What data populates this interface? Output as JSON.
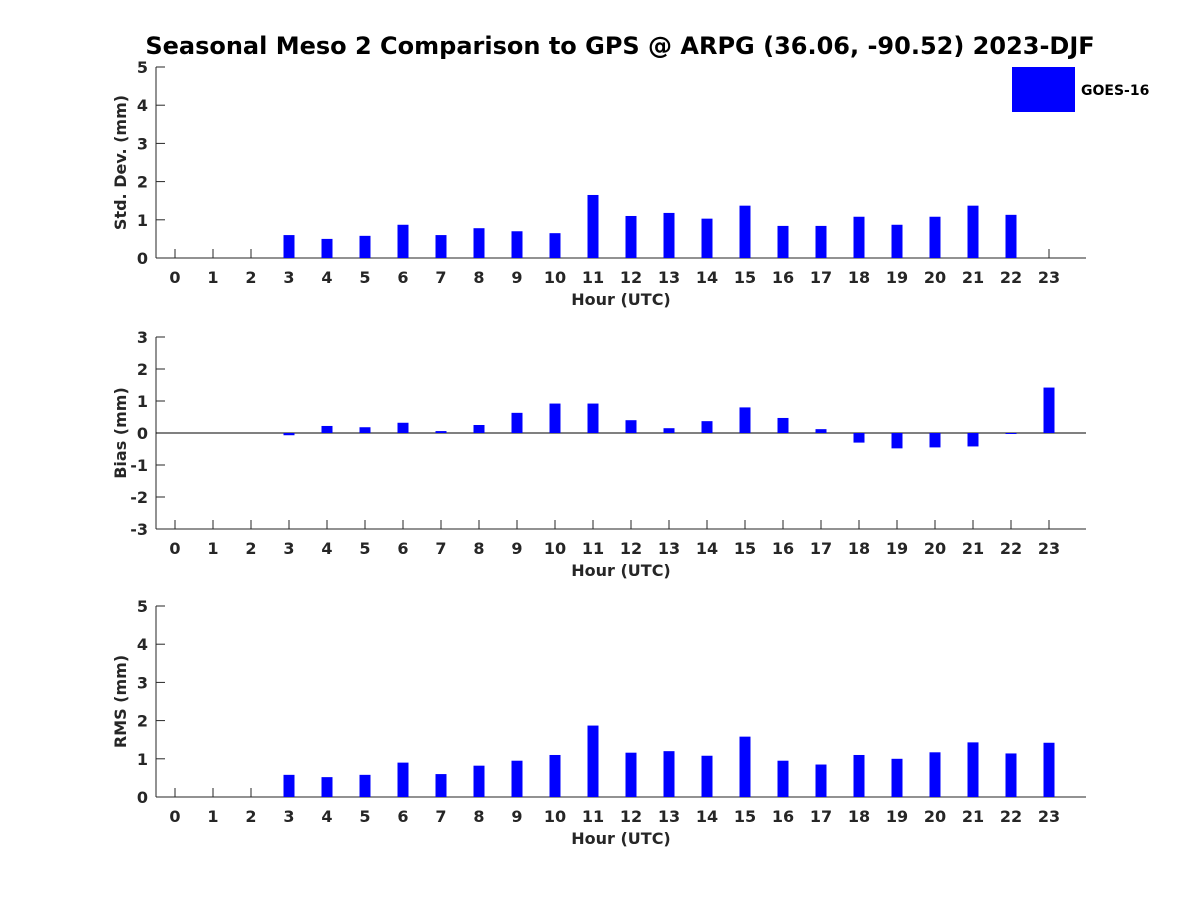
{
  "title": "Seasonal Meso 2 Comparison to GPS @ ARPG (36.06, -90.52) 2023-DJF",
  "legend": {
    "label": "GOES-16",
    "color": "#0000ff"
  },
  "bar_color": "#0000ff",
  "chart_data": [
    {
      "type": "bar",
      "xlabel": "Hour (UTC)",
      "ylabel": "Std. Dev. (mm)",
      "categories": [
        "0",
        "1",
        "2",
        "3",
        "4",
        "5",
        "6",
        "7",
        "8",
        "9",
        "10",
        "11",
        "12",
        "13",
        "14",
        "15",
        "16",
        "17",
        "18",
        "19",
        "20",
        "21",
        "22",
        "23"
      ],
      "yticks": [
        0,
        1,
        2,
        3,
        4,
        5
      ],
      "ylim": [
        0,
        5
      ],
      "grid": false,
      "legend_position": "top-right",
      "series": [
        {
          "name": "GOES-16",
          "values": [
            null,
            null,
            null,
            0.6,
            0.5,
            0.58,
            0.87,
            0.6,
            0.78,
            0.7,
            0.65,
            1.65,
            1.1,
            1.18,
            1.03,
            1.37,
            0.84,
            0.84,
            1.08,
            0.87,
            1.08,
            1.37,
            1.13,
            null
          ]
        }
      ]
    },
    {
      "type": "bar",
      "xlabel": "Hour (UTC)",
      "ylabel": "Bias (mm)",
      "categories": [
        "0",
        "1",
        "2",
        "3",
        "4",
        "5",
        "6",
        "7",
        "8",
        "9",
        "10",
        "11",
        "12",
        "13",
        "14",
        "15",
        "16",
        "17",
        "18",
        "19",
        "20",
        "21",
        "22",
        "23"
      ],
      "yticks": [
        -3,
        -2,
        -1,
        0,
        1,
        2,
        3
      ],
      "ylim": [
        -3,
        3
      ],
      "grid": false,
      "series": [
        {
          "name": "GOES-16",
          "values": [
            null,
            null,
            null,
            -0.07,
            0.22,
            0.18,
            0.32,
            0.06,
            0.25,
            0.63,
            0.92,
            0.92,
            0.4,
            0.15,
            0.37,
            0.8,
            0.47,
            0.12,
            -0.3,
            -0.48,
            -0.45,
            -0.42,
            0.0,
            1.42
          ]
        }
      ]
    },
    {
      "type": "bar",
      "xlabel": "Hour (UTC)",
      "ylabel": "RMS (mm)",
      "categories": [
        "0",
        "1",
        "2",
        "3",
        "4",
        "5",
        "6",
        "7",
        "8",
        "9",
        "10",
        "11",
        "12",
        "13",
        "14",
        "15",
        "16",
        "17",
        "18",
        "19",
        "20",
        "21",
        "22",
        "23"
      ],
      "yticks": [
        0,
        1,
        2,
        3,
        4,
        5
      ],
      "ylim": [
        0,
        5
      ],
      "grid": false,
      "series": [
        {
          "name": "GOES-16",
          "values": [
            null,
            null,
            null,
            0.58,
            0.52,
            0.58,
            0.9,
            0.6,
            0.82,
            0.95,
            1.1,
            1.87,
            1.16,
            1.2,
            1.08,
            1.58,
            0.95,
            0.85,
            1.1,
            1.0,
            1.17,
            1.43,
            1.14,
            1.42
          ]
        }
      ]
    }
  ]
}
